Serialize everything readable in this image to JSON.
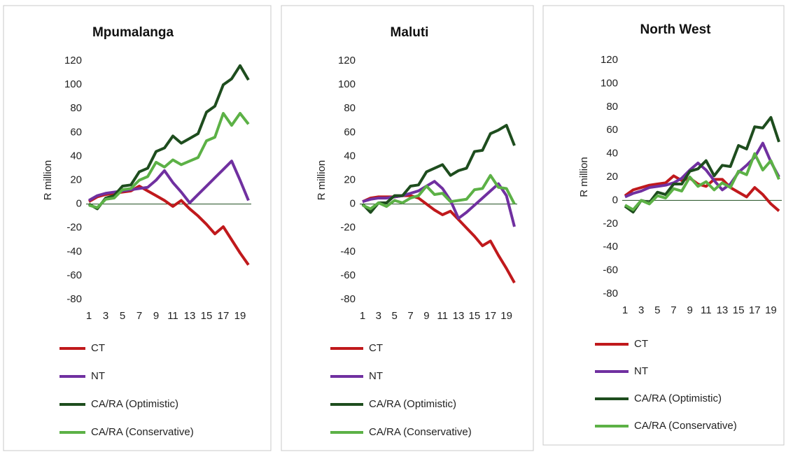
{
  "chart_data": [
    {
      "type": "line",
      "title": "Mpumalanga",
      "y_label": "R million",
      "categories": [
        "1",
        null,
        "3",
        null,
        "5",
        null,
        "7",
        null,
        "9",
        null,
        "11",
        null,
        "13",
        null,
        "15",
        null,
        "17",
        null,
        "19",
        null
      ],
      "ylim": [
        -80,
        120
      ],
      "yticks": [
        -80,
        -60,
        -40,
        -20,
        0,
        20,
        40,
        60,
        80,
        100,
        120
      ],
      "series": [
        {
          "name": "CT",
          "color": "#c0191c",
          "values": [
            2,
            6,
            8,
            9,
            10,
            11,
            15,
            11,
            7,
            3,
            -2,
            3,
            -4,
            -10,
            -17,
            -25,
            -19,
            -30,
            -41,
            -51
          ]
        },
        {
          "name": "NT",
          "color": "#7030a0",
          "values": [
            3,
            7,
            9,
            10,
            11,
            12,
            13,
            14,
            20,
            28,
            18,
            10,
            1,
            8,
            15,
            22,
            29,
            36,
            20,
            3
          ]
        },
        {
          "name": "CA/RA (Optimistic)",
          "color": "#1e4d1e",
          "values": [
            0,
            -4,
            5,
            7,
            15,
            16,
            27,
            30,
            44,
            47,
            57,
            51,
            55,
            59,
            77,
            82,
            100,
            105,
            116,
            104
          ]
        },
        {
          "name": "CA/RA (Conservative)",
          "color": "#5cb146",
          "values": [
            -1,
            -3,
            4,
            5,
            12,
            13,
            20,
            23,
            35,
            31,
            37,
            33,
            36,
            39,
            53,
            56,
            76,
            66,
            76,
            67
          ]
        }
      ]
    },
    {
      "type": "line",
      "title": "Maluti",
      "y_label": "R million",
      "categories": [
        "1",
        null,
        "3",
        null,
        "5",
        null,
        "7",
        null,
        "9",
        null,
        "11",
        null,
        "13",
        null,
        "15",
        null,
        "17",
        null,
        "19",
        null
      ],
      "ylim": [
        -80,
        120
      ],
      "yticks": [
        -80,
        -60,
        -40,
        -20,
        0,
        20,
        40,
        60,
        80,
        100,
        120
      ],
      "series": [
        {
          "name": "CT",
          "color": "#c0191c",
          "values": [
            2,
            5,
            6,
            6,
            6,
            7,
            7,
            5,
            0,
            -5,
            -9,
            -6,
            -13,
            -20,
            -27,
            -35,
            -31,
            -43,
            -54,
            -66
          ]
        },
        {
          "name": "NT",
          "color": "#7030a0",
          "values": [
            2,
            4,
            5,
            5,
            6,
            7,
            9,
            11,
            15,
            19,
            13,
            3,
            -12,
            -7,
            -1,
            5,
            11,
            17,
            7,
            -19
          ]
        },
        {
          "name": "CA/RA (Optimistic)",
          "color": "#1e4d1e",
          "values": [
            0,
            -7,
            1,
            1,
            7,
            7,
            15,
            16,
            27,
            30,
            33,
            24,
            28,
            30,
            44,
            45,
            59,
            62,
            66,
            49
          ]
        },
        {
          "name": "CA/RA (Conservative)",
          "color": "#5cb146",
          "values": [
            -1,
            -4,
            1,
            -2,
            3,
            1,
            5,
            7,
            15,
            8,
            9,
            2,
            3,
            4,
            12,
            13,
            24,
            14,
            13,
            0
          ]
        }
      ]
    },
    {
      "type": "line",
      "title": "North West",
      "y_label": "R million",
      "categories": [
        "1",
        null,
        "3",
        null,
        "5",
        null,
        "7",
        null,
        "9",
        null,
        "11",
        null,
        "13",
        null,
        "15",
        null,
        "17",
        null,
        "19",
        null
      ],
      "ylim": [
        -80,
        120
      ],
      "yticks": [
        -80,
        -60,
        -40,
        -20,
        0,
        20,
        40,
        60,
        80,
        100,
        120
      ],
      "series": [
        {
          "name": "CT",
          "color": "#c0191c",
          "values": [
            4,
            9,
            11,
            13,
            14,
            15,
            21,
            17,
            19,
            14,
            12,
            18,
            18,
            11,
            7,
            3,
            11,
            5,
            -3,
            -9
          ]
        },
        {
          "name": "NT",
          "color": "#7030a0",
          "values": [
            3,
            6,
            8,
            11,
            12,
            13,
            15,
            19,
            26,
            32,
            26,
            17,
            9,
            14,
            24,
            30,
            37,
            49,
            33,
            20
          ]
        },
        {
          "name": "CA/RA (Optimistic)",
          "color": "#1e4d1e",
          "values": [
            -5,
            -10,
            0,
            -2,
            7,
            5,
            14,
            14,
            25,
            27,
            34,
            21,
            30,
            29,
            47,
            44,
            63,
            62,
            71,
            50
          ]
        },
        {
          "name": "CA/RA (Conservative)",
          "color": "#5cb146",
          "values": [
            -4,
            -8,
            0,
            -3,
            4,
            2,
            10,
            8,
            20,
            12,
            16,
            9,
            15,
            11,
            25,
            22,
            40,
            26,
            34,
            18
          ]
        }
      ]
    }
  ]
}
